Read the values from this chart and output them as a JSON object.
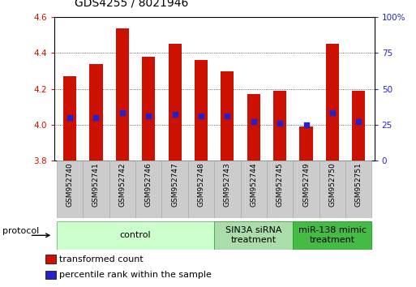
{
  "title": "GDS4255 / 8021946",
  "samples": [
    "GSM952740",
    "GSM952741",
    "GSM952742",
    "GSM952746",
    "GSM952747",
    "GSM952748",
    "GSM952743",
    "GSM952744",
    "GSM952745",
    "GSM952749",
    "GSM952750",
    "GSM952751"
  ],
  "transformed_count": [
    4.27,
    4.34,
    4.54,
    4.38,
    4.45,
    4.36,
    4.3,
    4.17,
    4.19,
    3.99,
    4.45,
    4.19
  ],
  "percentile_rank": [
    4.04,
    4.04,
    4.07,
    4.05,
    4.06,
    4.05,
    4.05,
    4.02,
    4.01,
    4.0,
    4.07,
    4.02
  ],
  "bar_bottom": 3.8,
  "ylim_left": [
    3.8,
    4.6
  ],
  "ylim_right": [
    0,
    100
  ],
  "yticks_left": [
    3.8,
    4.0,
    4.2,
    4.4,
    4.6
  ],
  "yticks_right": [
    0,
    25,
    50,
    75,
    100
  ],
  "ytick_labels_right": [
    "0",
    "25",
    "50",
    "75",
    "100%"
  ],
  "bar_color": "#cc1100",
  "percentile_color": "#2222cc",
  "grid_color": "#000000",
  "sample_box_color": "#cccccc",
  "sample_box_edge": "#aaaaaa",
  "groups": [
    {
      "label": "control",
      "start": 0,
      "end": 6,
      "color": "#ccffcc",
      "edge_color": "#88bb88"
    },
    {
      "label": "SIN3A siRNA\ntreatment",
      "start": 6,
      "end": 9,
      "color": "#aaddaa",
      "edge_color": "#55aa55"
    },
    {
      "label": "miR-138 mimic\ntreatment",
      "start": 9,
      "end": 12,
      "color": "#44bb44",
      "edge_color": "#22aa22"
    }
  ],
  "legend_items": [
    {
      "label": "transformed count",
      "color": "#cc1100"
    },
    {
      "label": "percentile rank within the sample",
      "color": "#2222cc"
    }
  ],
  "protocol_label": "protocol",
  "title_fontsize": 10,
  "tick_fontsize": 7.5,
  "sample_fontsize": 6.5,
  "group_fontsize": 8,
  "legend_fontsize": 8,
  "protocol_fontsize": 8
}
